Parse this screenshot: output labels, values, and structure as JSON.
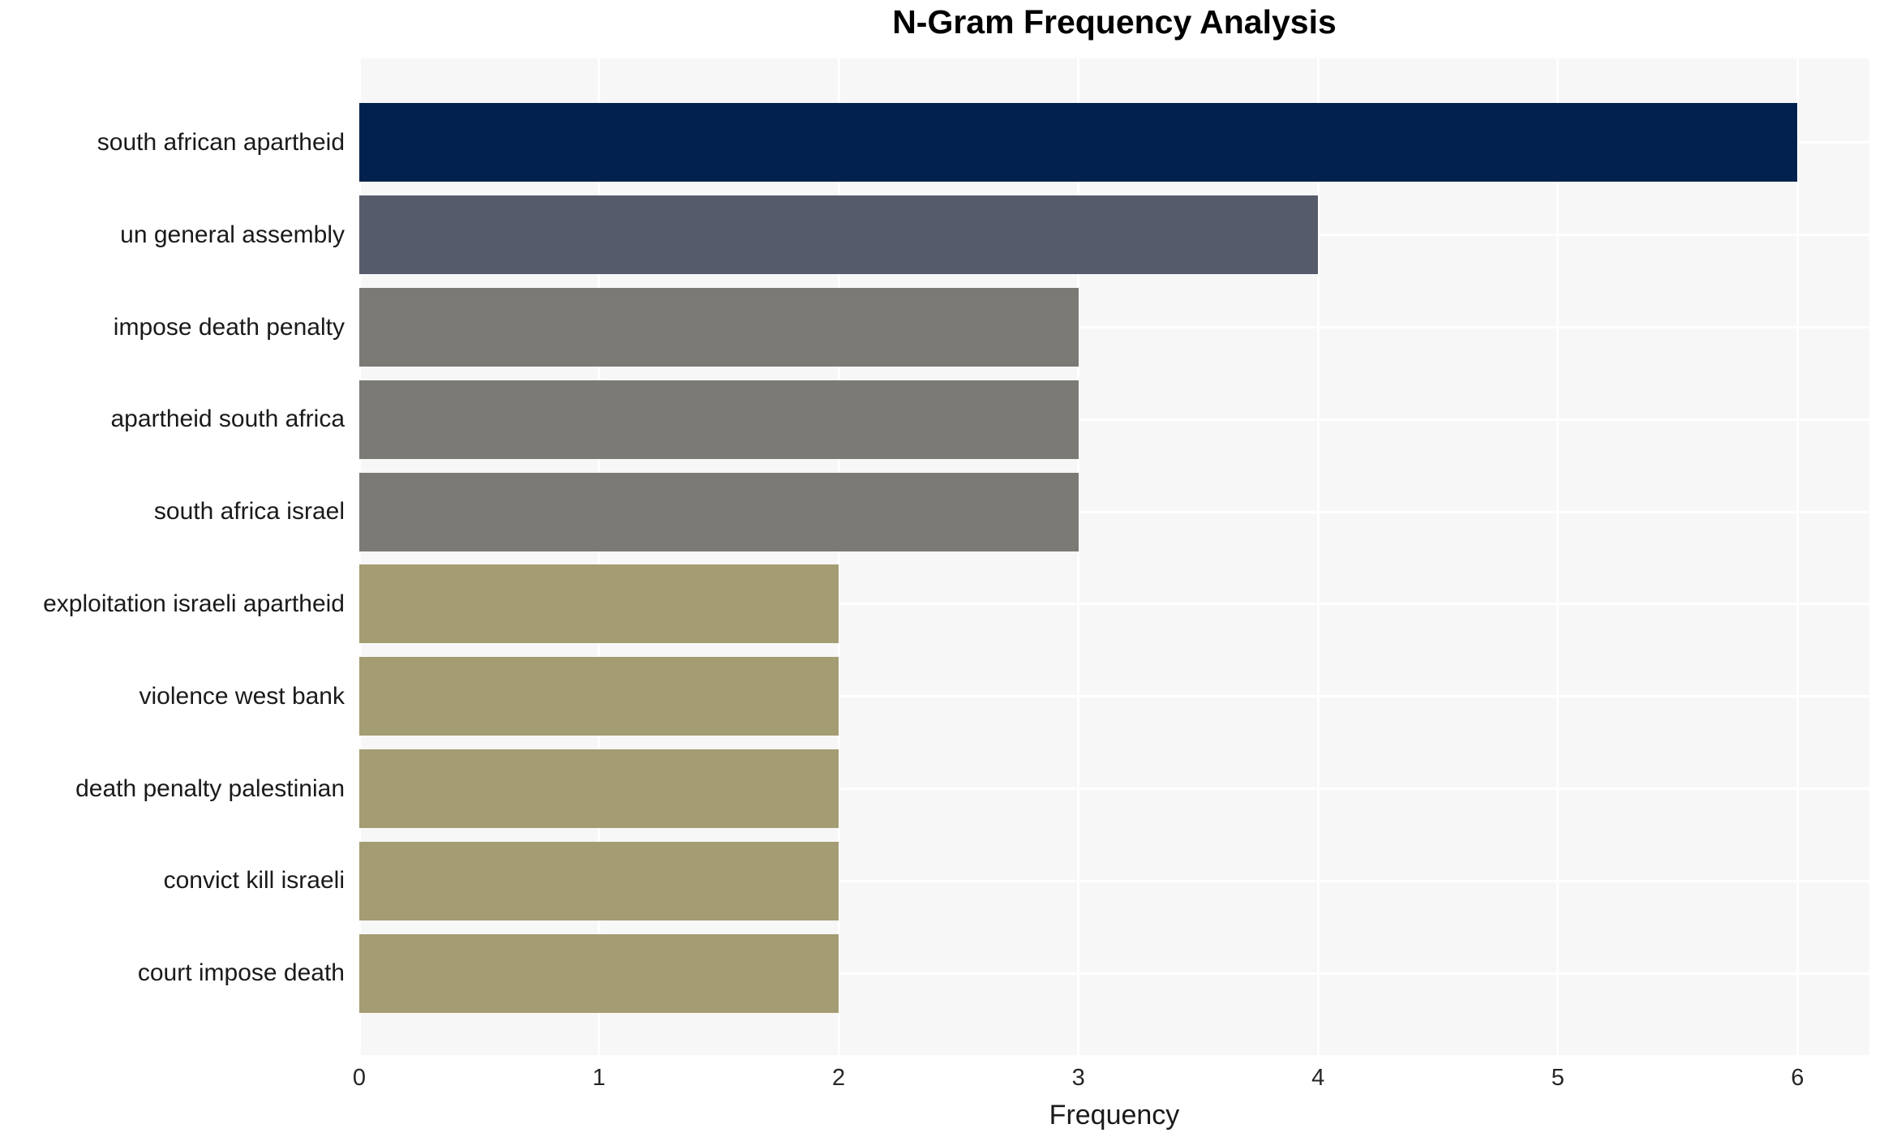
{
  "chart_data": {
    "type": "bar",
    "orientation": "horizontal",
    "title": "N-Gram Frequency Analysis",
    "xlabel": "Frequency",
    "ylabel": "",
    "categories": [
      "south african apartheid",
      "un general assembly",
      "impose death penalty",
      "apartheid south africa",
      "south africa israel",
      "exploitation israeli apartheid",
      "violence west bank",
      "death penalty palestinian",
      "convict kill israeli",
      "court impose death"
    ],
    "values": [
      6,
      4,
      3,
      3,
      3,
      2,
      2,
      2,
      2,
      2
    ],
    "bar_colors": [
      "#02214c",
      "#565b6c",
      "#7b7a74",
      "#7b7a74",
      "#7b7a74",
      "#a49c72",
      "#a49c72",
      "#a49c72",
      "#a49c72",
      "#a49c72"
    ],
    "xticks": [
      0,
      1,
      2,
      3,
      4,
      5,
      6
    ],
    "xlim": [
      0,
      6.3
    ],
    "grid": true,
    "legend": "none",
    "colors": {
      "plot_background": "#f7f7f7",
      "figure_background": "#ffffff",
      "gridline": "#ffffff",
      "title_text": "#000000",
      "label_text": "#1a1a1a",
      "tick_text": "#262626"
    }
  }
}
